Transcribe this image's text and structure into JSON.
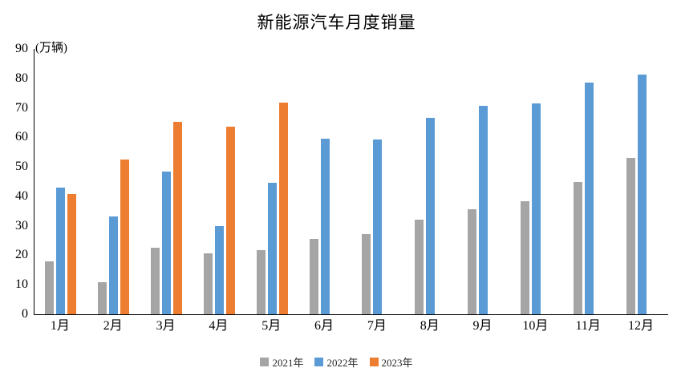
{
  "chart_data": {
    "type": "bar",
    "title": "新能源汽车月度销量",
    "unit_label": "(万辆)",
    "categories": [
      "1月",
      "2月",
      "3月",
      "4月",
      "5月",
      "6月",
      "7月",
      "8月",
      "9月",
      "10月",
      "11月",
      "12月"
    ],
    "series": [
      {
        "name": "2021年",
        "color": "#A5A5A5",
        "values": [
          17.9,
          11.0,
          22.6,
          20.6,
          21.7,
          25.6,
          27.1,
          32.1,
          35.7,
          38.3,
          45.0,
          53.1
        ]
      },
      {
        "name": "2022年",
        "color": "#5B9BD5",
        "values": [
          43.1,
          33.3,
          48.4,
          29.9,
          44.7,
          59.6,
          59.3,
          66.6,
          70.8,
          71.4,
          78.6,
          81.4
        ]
      },
      {
        "name": "2023年",
        "color": "#ED7D31",
        "values": [
          40.8,
          52.5,
          65.3,
          63.6,
          71.7,
          null,
          null,
          null,
          null,
          null,
          null,
          null
        ]
      }
    ],
    "y_ticks": [
      90,
      80,
      70,
      60,
      50,
      40,
      30,
      20,
      10,
      0
    ],
    "ylim": [
      0,
      90
    ],
    "xlabel": "",
    "ylabel": "(万辆)",
    "grid": false,
    "legend_position": "bottom",
    "axis_color": "#000000"
  }
}
